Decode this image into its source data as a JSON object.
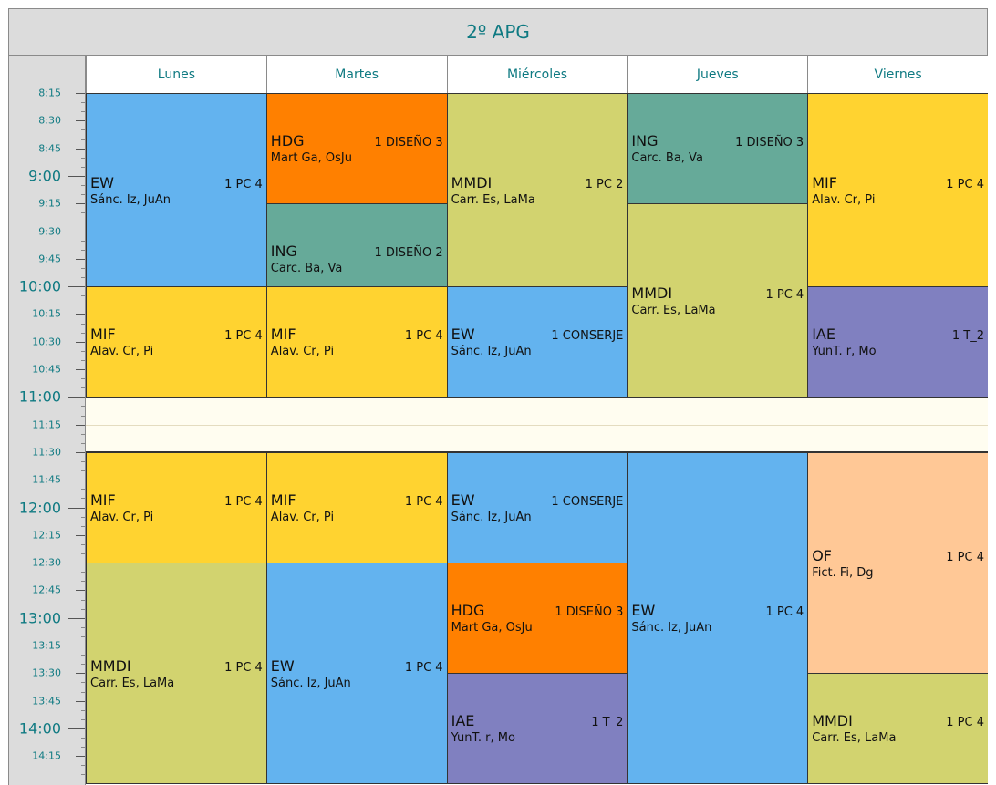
{
  "title": "2º APG",
  "days": [
    "Lunes",
    "Martes",
    "Miércoles",
    "Jueves",
    "Viernes"
  ],
  "times": [
    "8:15",
    "8:30",
    "8:45",
    "9:00",
    "9:15",
    "9:30",
    "9:45",
    "10:00",
    "10:15",
    "10:30",
    "10:45",
    "11:00",
    "11:15",
    "11:30",
    "11:45",
    "12:00",
    "12:15",
    "12:30",
    "12:45",
    "13:00",
    "13:15",
    "13:30",
    "13:45",
    "14:00",
    "14:15"
  ],
  "break": {
    "start": "11:00",
    "end": "11:30"
  },
  "colors": {
    "EW": "#63b3ef",
    "HDG": "#ff8000",
    "ING": "#66aa99",
    "MMDI": "#d2d36f",
    "MIF": "#ffd330",
    "IAE": "#8080c0",
    "OF": "#ffc896"
  },
  "events": [
    {
      "day": 0,
      "start": "8:15",
      "end": "10:00",
      "subject": "EW",
      "room": "1 PC 4",
      "teacher": "Sánc. Iz, JuAn"
    },
    {
      "day": 0,
      "start": "10:00",
      "end": "11:00",
      "subject": "MIF",
      "room": "1 PC 4",
      "teacher": "Alav. Cr, Pi"
    },
    {
      "day": 0,
      "start": "11:30",
      "end": "12:30",
      "subject": "MIF",
      "room": "1 PC 4",
      "teacher": "Alav. Cr, Pi"
    },
    {
      "day": 0,
      "start": "12:30",
      "end": "14:30",
      "subject": "MMDI",
      "room": "1 PC 4",
      "teacher": "Carr. Es, LaMa"
    },
    {
      "day": 1,
      "start": "8:15",
      "end": "9:15",
      "subject": "HDG",
      "room": "1 DISEÑO 3",
      "teacher": "Mart Ga, OsJu"
    },
    {
      "day": 1,
      "start": "9:15",
      "end": "10:15",
      "subject": "ING",
      "room": "1 DISEÑO 2",
      "teacher": "Carc. Ba, Va"
    },
    {
      "day": 1,
      "start": "10:00",
      "end": "11:00",
      "subject": "MIF",
      "room": "1 PC 4",
      "teacher": "Alav. Cr, Pi"
    },
    {
      "day": 1,
      "start": "11:30",
      "end": "12:30",
      "subject": "MIF",
      "room": "1 PC 4",
      "teacher": "Alav. Cr, Pi"
    },
    {
      "day": 1,
      "start": "12:30",
      "end": "14:30",
      "subject": "EW",
      "room": "1 PC 4",
      "teacher": "Sánc. Iz, JuAn"
    },
    {
      "day": 2,
      "start": "8:15",
      "end": "10:00",
      "subject": "MMDI",
      "room": "1 PC 2",
      "teacher": "Carr. Es, LaMa"
    },
    {
      "day": 2,
      "start": "10:00",
      "end": "11:00",
      "subject": "EW",
      "room": "1 CONSERJE",
      "teacher": "Sánc. Iz, JuAn"
    },
    {
      "day": 2,
      "start": "11:30",
      "end": "12:30",
      "subject": "EW",
      "room": "1 CONSERJE",
      "teacher": "Sánc. Iz, JuAn"
    },
    {
      "day": 2,
      "start": "12:30",
      "end": "13:30",
      "subject": "HDG",
      "room": "1 DISEÑO 3",
      "teacher": "Mart Ga, OsJu"
    },
    {
      "day": 2,
      "start": "13:30",
      "end": "14:30",
      "subject": "IAE",
      "room": "1 T_2",
      "teacher": "YunT. r, Mo"
    },
    {
      "day": 3,
      "start": "8:15",
      "end": "9:15",
      "subject": "ING",
      "room": "1 DISEÑO 3",
      "teacher": "Carc. Ba, Va"
    },
    {
      "day": 3,
      "start": "9:15",
      "end": "11:00",
      "subject": "MMDI",
      "room": "1 PC 4",
      "teacher": "Carr. Es, LaMa"
    },
    {
      "day": 3,
      "start": "11:30",
      "end": "14:30",
      "subject": "EW",
      "room": "1 PC 4",
      "teacher": "Sánc. Iz, JuAn"
    },
    {
      "day": 4,
      "start": "8:15",
      "end": "10:00",
      "subject": "MIF",
      "room": "1 PC 4",
      "teacher": "Alav. Cr, Pi"
    },
    {
      "day": 4,
      "start": "10:00",
      "end": "11:00",
      "subject": "IAE",
      "room": "1 T_2",
      "teacher": "YunT. r, Mo"
    },
    {
      "day": 4,
      "start": "11:30",
      "end": "13:30",
      "subject": "OF",
      "room": "1 PC 4",
      "teacher": "Fict. Fi, Dg"
    },
    {
      "day": 4,
      "start": "13:30",
      "end": "14:30",
      "subject": "MMDI",
      "room": "1 PC 4",
      "teacher": "Carr. Es, LaMa"
    }
  ]
}
